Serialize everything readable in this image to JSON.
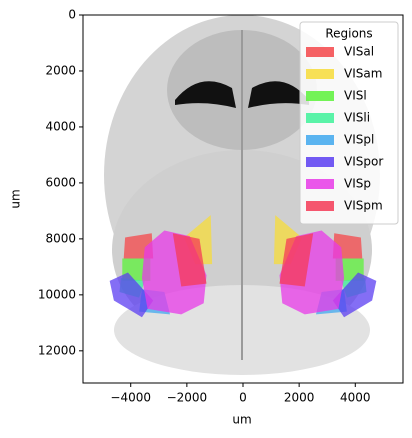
{
  "chart_data": {
    "type": "polygon",
    "xlabel": "um",
    "ylabel": "um",
    "xlim": [
      -5700,
      5700
    ],
    "ylim": [
      13150,
      0
    ],
    "xticks": [
      {
        "value": -4000,
        "label": "−4000"
      },
      {
        "value": -2000,
        "label": "−2000"
      },
      0,
      2000,
      4000
    ],
    "yticks": [
      0,
      2000,
      4000,
      6000,
      8000,
      10000,
      12000
    ],
    "legend_title": "Regions",
    "legend_loc": "upper right",
    "series": [
      {
        "name": "VISal",
        "color": "#f5474a",
        "x": [
          -4200,
          -3250,
          -3200,
          -4250,
          null,
          4200,
          3250,
          3200,
          4250
        ],
        "y": [
          7950,
          7800,
          8700,
          8700,
          null,
          7950,
          7800,
          8700,
          8700
        ]
      },
      {
        "name": "VISam",
        "color": "#f7dc3a",
        "x": [
          -2100,
          -1150,
          -1100,
          -1700,
          null,
          2100,
          1150,
          1100,
          1700
        ],
        "y": [
          7950,
          7150,
          8900,
          8900,
          null,
          7950,
          7150,
          8900,
          8900
        ]
      },
      {
        "name": "VISl",
        "color": "#5cf23a",
        "x": [
          -4300,
          -3300,
          -3300,
          -4300,
          null,
          4300,
          3300,
          3300,
          4300
        ],
        "y": [
          8700,
          8700,
          9500,
          9500,
          null,
          8700,
          8700,
          9500,
          9500
        ]
      },
      {
        "name": "VISli",
        "color": "#3ef29a",
        "x": [
          -4350,
          -3500,
          -3700,
          -4400,
          null,
          4350,
          3500,
          3700,
          4400
        ],
        "y": [
          9400,
          9500,
          10100,
          9900,
          null,
          9400,
          9500,
          10100,
          9900
        ]
      },
      {
        "name": "VISpl",
        "color": "#40a8ef",
        "x": [
          -3600,
          -2800,
          -2600,
          -3700,
          null,
          3600,
          2800,
          2600,
          3700
        ],
        "y": [
          9800,
          9900,
          10700,
          10600,
          null,
          9800,
          9900,
          10700,
          10600
        ]
      },
      {
        "name": "VISpor",
        "color": "#5b3ef2",
        "x": [
          -4750,
          -4100,
          -3200,
          -3600,
          -4600,
          null,
          4750,
          4100,
          3200,
          3600,
          4600
        ],
        "y": [
          9500,
          9200,
          10200,
          10800,
          10200,
          null,
          9500,
          9200,
          10200,
          10800,
          10200
        ]
      },
      {
        "name": "VISp",
        "color": "#e83ae8",
        "x": [
          -3500,
          -2800,
          -1900,
          -1300,
          -1400,
          -2200,
          -3400,
          -3600,
          null,
          3500,
          2800,
          1900,
          1300,
          1400,
          2200,
          3400,
          3600
        ],
        "y": [
          8300,
          7700,
          7900,
          9300,
          10300,
          10700,
          10500,
          9400,
          null,
          8300,
          7700,
          7900,
          9300,
          10300,
          10700,
          10500,
          9400
        ]
      },
      {
        "name": "VISpm",
        "color": "#f53a56",
        "x": [
          -2500,
          -1550,
          -1300,
          -2200,
          null,
          2500,
          1550,
          1300,
          2200
        ],
        "y": [
          7800,
          8000,
          9600,
          9700,
          null,
          7800,
          8000,
          9600,
          9700
        ]
      }
    ]
  }
}
